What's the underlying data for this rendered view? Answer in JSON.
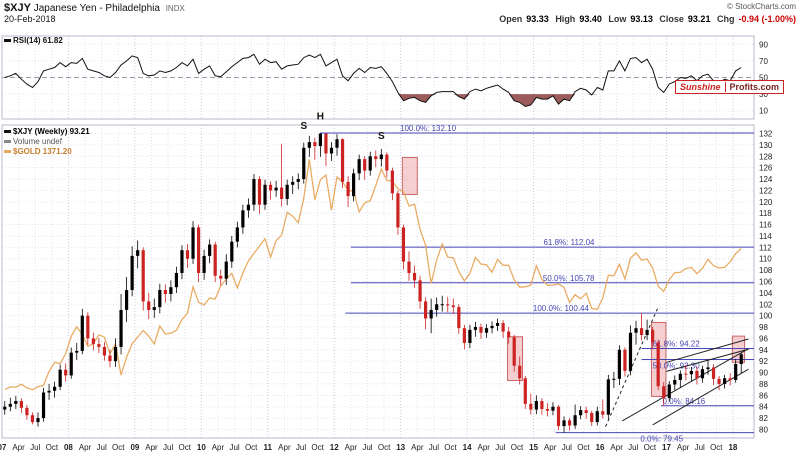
{
  "header": {
    "symbol": "$XJY",
    "title": "Japanese Yen - Philadelphia",
    "exchange": "INDX",
    "copyright": "© StockCharts.com",
    "date": "20-Feb-2018",
    "quote": {
      "open_label": "Open",
      "open": "93.33",
      "high_label": "High",
      "high": "93.40",
      "low_label": "Low",
      "low": "93.13",
      "close_label": "Close",
      "close": "93.21",
      "chg_label": "Chg",
      "chg": "-0.94 (-1.00%)"
    }
  },
  "rsi_panel": {
    "label": "RSI(14) 61.82"
  },
  "legend": {
    "series1": "$XJY (Weekly) 93.21",
    "series2": "Volume undef",
    "series3": "$GOLD 1371.20"
  },
  "watermark": {
    "part1": "Sunshine",
    "part2": "Profits.com"
  },
  "colors": {
    "up": "#000000",
    "down": "#cc2222",
    "gold": "#e8a85c",
    "fib": "#4646b4",
    "rsi_line": "#111111",
    "rsi_fill": "#8b4040",
    "highlight_fill": "rgba(230,120,120,0.35)",
    "highlight_stroke": "#cc6666",
    "grid_minor": "#e3e3ef",
    "grid_year": "#c9c9dc",
    "panel_border": "#b8b8c8",
    "trend": "#222222",
    "axis_text": "#222222",
    "watermark_red": "#cc0000"
  },
  "chart_data": {
    "type": "candlestick",
    "title": "$XJY Japanese Yen - Philadelphia (Weekly) with $GOLD overlay and RSI(14)",
    "x_range_label": "Jan 2007 - Feb 2018",
    "ylim_main": [
      80,
      132
    ],
    "ylim_rsi": [
      10,
      90
    ],
    "x_ticks": [
      "07",
      "Apr",
      "Jul",
      "Oct",
      "08",
      "Apr",
      "Jul",
      "Oct",
      "09",
      "Apr",
      "Jul",
      "Oct",
      "10",
      "Apr",
      "Jul",
      "Oct",
      "11",
      "Apr",
      "Jul",
      "Oct",
      "12",
      "Apr",
      "Jul",
      "Oct",
      "13",
      "Apr",
      "Jul",
      "Oct",
      "14",
      "Apr",
      "Jul",
      "Oct",
      "15",
      "Apr",
      "Jul",
      "Oct",
      "16",
      "Apr",
      "Jul",
      "Oct",
      "17",
      "Apr",
      "Jul",
      "Oct",
      "18"
    ],
    "y_ticks_main": [
      132,
      130,
      128,
      126,
      124,
      122,
      120,
      118,
      116,
      114,
      112,
      110,
      108,
      106,
      104,
      102,
      100,
      98,
      96,
      94,
      92,
      90,
      88,
      86,
      84,
      82,
      80
    ],
    "y_ticks_rsi": [
      90,
      70,
      50,
      30,
      10
    ],
    "rsi_oversold_level": 30,
    "rsi_mid_level": 50,
    "xjy_monthly_ohlc": [
      [
        83.5,
        85.0,
        82.6,
        84.0
      ],
      [
        84.0,
        85.6,
        83.2,
        84.5
      ],
      [
        84.5,
        85.9,
        83.6,
        85.0
      ],
      [
        85.0,
        85.5,
        82.9,
        83.8
      ],
      [
        83.8,
        84.3,
        81.7,
        82.5
      ],
      [
        82.5,
        83.0,
        80.9,
        81.3
      ],
      [
        81.3,
        83.0,
        80.5,
        82.0
      ],
      [
        82.0,
        87.3,
        81.4,
        86.5
      ],
      [
        86.5,
        88.0,
        85.2,
        86.8
      ],
      [
        86.8,
        88.4,
        85.6,
        87.5
      ],
      [
        87.5,
        91.4,
        86.9,
        90.5
      ],
      [
        90.5,
        91.6,
        88.4,
        89.5
      ],
      [
        89.5,
        94.4,
        88.9,
        93.5
      ],
      [
        93.5,
        95.2,
        92.2,
        93.8
      ],
      [
        93.8,
        101.2,
        93.2,
        100.0
      ],
      [
        100.0,
        100.6,
        94.9,
        96.0
      ],
      [
        96.0,
        97.0,
        93.9,
        95.0
      ],
      [
        95.0,
        96.1,
        93.4,
        94.5
      ],
      [
        94.5,
        95.4,
        92.1,
        93.0
      ],
      [
        93.0,
        94.0,
        90.9,
        92.0
      ],
      [
        92.0,
        96.0,
        91.0,
        94.5
      ],
      [
        94.5,
        103.8,
        93.2,
        101.0
      ],
      [
        101.0,
        106.8,
        98.9,
        104.5
      ],
      [
        104.5,
        112.2,
        103.4,
        110.5
      ],
      [
        110.5,
        113.2,
        108.3,
        111.5
      ],
      [
        111.5,
        112.0,
        100.9,
        102.5
      ],
      [
        102.5,
        104.0,
        99.4,
        101.0
      ],
      [
        101.0,
        103.0,
        99.6,
        101.5
      ],
      [
        101.5,
        105.6,
        100.4,
        104.5
      ],
      [
        104.5,
        105.5,
        102.3,
        103.8
      ],
      [
        103.8,
        106.2,
        102.5,
        105.0
      ],
      [
        105.0,
        108.6,
        104.0,
        107.5
      ],
      [
        107.5,
        112.4,
        106.4,
        111.5
      ],
      [
        111.5,
        112.6,
        108.4,
        110.0
      ],
      [
        110.0,
        116.6,
        109.1,
        115.5
      ],
      [
        115.5,
        116.0,
        105.9,
        107.5
      ],
      [
        107.5,
        111.6,
        106.3,
        110.5
      ],
      [
        110.5,
        113.4,
        109.2,
        112.5
      ],
      [
        112.5,
        113.0,
        105.9,
        107.0
      ],
      [
        107.0,
        108.1,
        105.3,
        106.5
      ],
      [
        106.5,
        110.8,
        105.4,
        109.5
      ],
      [
        109.5,
        114.0,
        108.4,
        113.0
      ],
      [
        113.0,
        116.5,
        112.0,
        115.5
      ],
      [
        115.5,
        119.5,
        114.4,
        118.5
      ],
      [
        118.5,
        120.6,
        117.2,
        119.5
      ],
      [
        119.5,
        124.9,
        118.4,
        124.0
      ],
      [
        124.0,
        124.5,
        117.9,
        119.5
      ],
      [
        119.5,
        123.9,
        118.6,
        123.0
      ],
      [
        123.0,
        123.6,
        120.4,
        122.0
      ],
      [
        122.0,
        123.7,
        120.9,
        122.5
      ],
      [
        122.5,
        130.2,
        119.2,
        120.5
      ],
      [
        120.5,
        123.9,
        119.4,
        123.0
      ],
      [
        123.0,
        124.5,
        121.4,
        123.5
      ],
      [
        123.5,
        125.0,
        122.2,
        124.0
      ],
      [
        124.0,
        130.4,
        123.2,
        129.5
      ],
      [
        129.5,
        131.6,
        127.9,
        130.5
      ],
      [
        130.5,
        131.3,
        127.4,
        129.8
      ],
      [
        129.8,
        132.1,
        127.9,
        132.0
      ],
      [
        132.0,
        132.0,
        126.3,
        128.5
      ],
      [
        128.5,
        130.5,
        127.2,
        129.5
      ],
      [
        129.5,
        131.9,
        128.1,
        131.0
      ],
      [
        131.0,
        131.2,
        122.4,
        123.5
      ],
      [
        123.5,
        124.5,
        119.1,
        121.0
      ],
      [
        121.0,
        125.8,
        120.1,
        125.0
      ],
      [
        125.0,
        128.3,
        123.8,
        127.5
      ],
      [
        127.5,
        128.0,
        123.9,
        125.5
      ],
      [
        125.5,
        128.8,
        124.6,
        128.0
      ],
      [
        128.0,
        129.0,
        126.1,
        127.5
      ],
      [
        127.5,
        129.3,
        126.2,
        128.3
      ],
      [
        128.3,
        128.7,
        124.3,
        125.5
      ],
      [
        125.5,
        126.0,
        120.3,
        121.5
      ],
      [
        121.5,
        122.0,
        114.2,
        115.5
      ],
      [
        115.5,
        116.0,
        108.1,
        109.5
      ],
      [
        109.5,
        111.3,
        106.1,
        107.5
      ],
      [
        107.5,
        108.8,
        104.9,
        106.2
      ],
      [
        106.2,
        107.0,
        101.2,
        102.5
      ],
      [
        102.5,
        103.2,
        97.6,
        99.5
      ],
      [
        99.5,
        103.0,
        96.9,
        101.0
      ],
      [
        101.0,
        103.2,
        99.8,
        102.0
      ],
      [
        102.0,
        103.5,
        100.7,
        102.0
      ],
      [
        102.0,
        103.3,
        100.6,
        101.8
      ],
      [
        101.8,
        103.0,
        100.3,
        101.5
      ],
      [
        101.5,
        102.0,
        96.8,
        97.8
      ],
      [
        97.8,
        98.4,
        94.1,
        95.2
      ],
      [
        95.2,
        98.4,
        94.3,
        97.5
      ],
      [
        97.5,
        98.9,
        96.3,
        98.0
      ],
      [
        98.0,
        98.6,
        95.9,
        97.0
      ],
      [
        97.0,
        98.5,
        96.1,
        97.8
      ],
      [
        97.8,
        99.0,
        96.9,
        98.2
      ],
      [
        98.2,
        99.5,
        97.3,
        98.7
      ],
      [
        98.7,
        99.2,
        96.1,
        97.2
      ],
      [
        97.2,
        98.0,
        95.1,
        96.2
      ],
      [
        96.2,
        96.6,
        90.2,
        91.2
      ],
      [
        91.2,
        92.8,
        87.9,
        89.0
      ],
      [
        89.0,
        89.4,
        83.6,
        84.5
      ],
      [
        84.5,
        86.3,
        82.6,
        83.5
      ],
      [
        83.5,
        86.0,
        82.7,
        85.0
      ],
      [
        85.0,
        85.5,
        82.6,
        83.6
      ],
      [
        83.6,
        84.6,
        82.3,
        83.3
      ],
      [
        83.3,
        84.8,
        82.5,
        84.0
      ],
      [
        84.0,
        84.3,
        79.9,
        80.6
      ],
      [
        80.6,
        82.3,
        79.45,
        81.6
      ],
      [
        81.6,
        82.0,
        79.8,
        80.7
      ],
      [
        80.7,
        84.4,
        80.1,
        82.5
      ],
      [
        82.5,
        84.1,
        81.8,
        83.4
      ],
      [
        83.4,
        84.0,
        81.9,
        82.9
      ],
      [
        82.9,
        83.3,
        80.6,
        81.3
      ],
      [
        81.3,
        84.0,
        80.7,
        83.2
      ],
      [
        83.2,
        85.3,
        81.9,
        82.6
      ],
      [
        82.6,
        89.6,
        81.9,
        88.8
      ],
      [
        88.8,
        90.1,
        87.3,
        88.9
      ],
      [
        88.9,
        94.8,
        87.8,
        94.0
      ],
      [
        94.0,
        94.4,
        89.3,
        90.3
      ],
      [
        90.3,
        98.3,
        89.5,
        97.0
      ],
      [
        97.0,
        99.1,
        94.9,
        97.8
      ],
      [
        97.8,
        100.44,
        95.6,
        96.6
      ],
      [
        96.6,
        99.3,
        95.7,
        97.5
      ],
      [
        97.5,
        98.0,
        94.1,
        95.3
      ],
      [
        95.3,
        95.8,
        86.9,
        87.6
      ],
      [
        87.6,
        88.3,
        84.16,
        85.5
      ],
      [
        85.5,
        88.5,
        84.9,
        87.9
      ],
      [
        87.9,
        89.5,
        86.9,
        88.7
      ],
      [
        88.7,
        90.4,
        87.4,
        89.8
      ],
      [
        89.8,
        91.3,
        88.6,
        89.7
      ],
      [
        89.7,
        90.9,
        88.5,
        90.3
      ],
      [
        90.3,
        91.0,
        87.9,
        89.0
      ],
      [
        89.0,
        91.2,
        88.2,
        90.6
      ],
      [
        90.6,
        92.3,
        89.6,
        90.9
      ],
      [
        90.9,
        91.5,
        87.8,
        88.9
      ],
      [
        88.9,
        89.4,
        86.9,
        88.0
      ],
      [
        88.0,
        89.6,
        87.2,
        89.0
      ],
      [
        89.0,
        89.9,
        87.7,
        88.7
      ],
      [
        88.7,
        92.4,
        88.2,
        91.5
      ],
      [
        91.5,
        93.4,
        89.9,
        93.21
      ]
    ],
    "gold_monthly": [
      650,
      664,
      663,
      677,
      659,
      650,
      665,
      672,
      743,
      789,
      783,
      833,
      923,
      971,
      933,
      871,
      885,
      930,
      918,
      833,
      884,
      724,
      816,
      884,
      919,
      952,
      924,
      883,
      975,
      934,
      939,
      953,
      1008,
      1040,
      1175,
      1096,
      1083,
      1118,
      1113,
      1180,
      1215,
      1244,
      1169,
      1246,
      1307,
      1346,
      1383,
      1421,
      1327,
      1411,
      1439,
      1556,
      1536,
      1502,
      1628,
      1826,
      1620,
      1722,
      1746,
      1566,
      1737,
      1711,
      1668,
      1664,
      1558,
      1604,
      1615,
      1692,
      1776,
      1719,
      1715,
      1676,
      1661,
      1588,
      1597,
      1469,
      1387,
      1192,
      1312,
      1394,
      1327,
      1323,
      1253,
      1206,
      1244,
      1326,
      1291,
      1288,
      1250,
      1315,
      1285,
      1285,
      1211,
      1173,
      1175,
      1184,
      1283,
      1213,
      1183,
      1184,
      1190,
      1172,
      1095,
      1135,
      1114,
      1142,
      1065,
      1060,
      1118,
      1234,
      1232,
      1290,
      1215,
      1322,
      1349,
      1311,
      1317,
      1272,
      1178,
      1152,
      1212,
      1248,
      1249,
      1268,
      1275,
      1242,
      1269,
      1316,
      1283,
      1271,
      1275,
      1303,
      1345,
      1371
    ],
    "gold_scale": {
      "gold_min": 650,
      "gold_max": 1900,
      "price_min": 87,
      "price_max": 130
    },
    "rsi_monthly": [
      50,
      52,
      55,
      48,
      42,
      38,
      45,
      58,
      60,
      62,
      68,
      63,
      68,
      67,
      73,
      60,
      58,
      56,
      52,
      50,
      56,
      65,
      70,
      76,
      74,
      55,
      52,
      53,
      58,
      56,
      58,
      62,
      68,
      64,
      72,
      55,
      60,
      64,
      52,
      51,
      57,
      63,
      68,
      73,
      74,
      78,
      66,
      72,
      68,
      69,
      60,
      64,
      65,
      66,
      74,
      77,
      74,
      78,
      64,
      68,
      72,
      52,
      46,
      55,
      61,
      56,
      62,
      61,
      63,
      55,
      45,
      32,
      22,
      25,
      26,
      22,
      20,
      28,
      32,
      33,
      33,
      33,
      27,
      24,
      33,
      36,
      34,
      37,
      39,
      41,
      36,
      32,
      22,
      20,
      15,
      17,
      26,
      24,
      24,
      28,
      18,
      24,
      22,
      33,
      37,
      35,
      29,
      38,
      35,
      58,
      58,
      70,
      58,
      73,
      74,
      68,
      72,
      60,
      38,
      32,
      42,
      45,
      50,
      49,
      52,
      46,
      52,
      54,
      46,
      43,
      48,
      46,
      58,
      62
    ],
    "fib_levels": [
      {
        "label": "100.0%: 132.10",
        "price": 132.1,
        "t0": 57.5,
        "label_t": 82,
        "below": false
      },
      {
        "label": "61.8%: 112.04",
        "price": 112.04,
        "t0": 63,
        "label_t": 107,
        "below": false
      },
      {
        "label": "50.0%: 105.78",
        "price": 105.78,
        "t0": 63,
        "label_t": 107,
        "below": false
      },
      {
        "label": "100.0%: 100.44",
        "price": 100.44,
        "t0": 62,
        "label_t": 106,
        "below": false
      },
      {
        "label": "61.8%: 94.22",
        "price": 94.22,
        "t0": 115.5,
        "label_t": 126,
        "below": false
      },
      {
        "label": "50.0%: 92.30",
        "price": 92.3,
        "t0": 115.5,
        "label_t": 126,
        "below": true
      },
      {
        "label": "0.0%: 84.16",
        "price": 84.16,
        "t0": 119,
        "label_t": 127,
        "below": false
      },
      {
        "label": "0.0%: 79.45",
        "price": 79.45,
        "t0": 100,
        "label_t": 123,
        "below": true
      }
    ],
    "trend_lines": [
      {
        "t0": 109,
        "p0": 80.5,
        "t1": 118.5,
        "p1": 101.5,
        "dash": true
      },
      {
        "t0": 112,
        "p0": 81.5,
        "t1": 134.8,
        "p1": 94.2,
        "dash": false
      },
      {
        "t0": 117.5,
        "p0": 80.8,
        "t1": 134.8,
        "p1": 90.6,
        "dash": false
      },
      {
        "t0": 120,
        "p0": 91.8,
        "t1": 134.8,
        "p1": 95.9,
        "dash": false
      },
      {
        "t0": 120,
        "p0": 90.2,
        "t1": 134.8,
        "p1": 94.1,
        "dash": false
      }
    ],
    "highlights": [
      {
        "t0": 72.3,
        "t1": 75.0,
        "p0": 121.3,
        "p1": 127.8
      },
      {
        "t0": 91.3,
        "t1": 94.0,
        "p0": 88.6,
        "p1": 96.3
      },
      {
        "t0": 117.3,
        "t1": 119.9,
        "p0": 85.8,
        "p1": 98.8
      },
      {
        "t0": 131.9,
        "t1": 134.1,
        "p0": 91.8,
        "p1": 96.4
      }
    ],
    "annotations": [
      {
        "text": "S",
        "t": 54.5,
        "p": 132.8
      },
      {
        "text": "H",
        "t": 57.5,
        "p": 134.5
      },
      {
        "text": "S",
        "t": 68.5,
        "p": 131.0
      }
    ]
  }
}
